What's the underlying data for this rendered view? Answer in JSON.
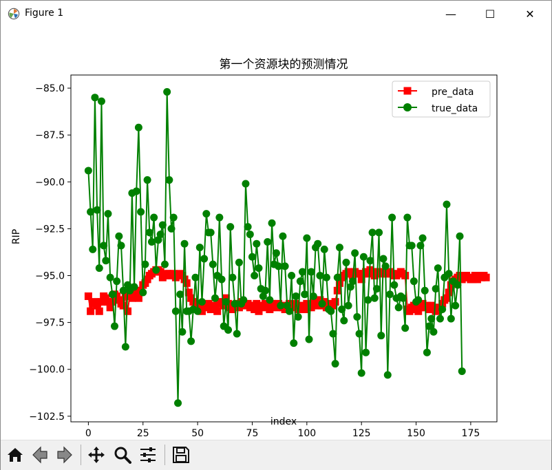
{
  "window": {
    "title": "Figure 1",
    "minimize_glyph": "—",
    "maximize_glyph": "☐",
    "close_glyph": "✕"
  },
  "toolbar": {
    "icons": [
      "home-icon",
      "back-icon",
      "forward-icon",
      "pan-icon",
      "zoom-icon",
      "configure-subplots-icon",
      "save-icon"
    ]
  },
  "colors": {
    "pre": "#ff0000",
    "true": "#008000"
  },
  "chart_data": {
    "type": "line",
    "title": "第一个资源块的预测情况",
    "xlabel": "index",
    "ylabel": "RIP",
    "xlim": [
      -8,
      187
    ],
    "ylim": [
      -102.8,
      -84.3
    ],
    "xticks": [
      0,
      25,
      50,
      75,
      100,
      125,
      150,
      175
    ],
    "xtick_labels": [
      "0",
      "25",
      "50",
      "75",
      "100",
      "125",
      "150",
      "175"
    ],
    "yticks": [
      -85.0,
      -87.5,
      -90.0,
      -92.5,
      -95.0,
      -97.5,
      -100.0,
      -102.5
    ],
    "ytick_labels": [
      "−85.0",
      "−87.5",
      "−90.0",
      "−92.5",
      "−95.0",
      "−97.5",
      "−100.0",
      "−102.5"
    ],
    "legend_position": "top-right",
    "series": [
      {
        "name": "pre_data",
        "marker": "square",
        "color": "#ff0000",
        "values": [
          -96.1,
          -96.9,
          -96.5,
          -96.4,
          -96.6,
          -96.9,
          -96.4,
          -96.1,
          -96.2,
          -96.4,
          -96.7,
          -96.4,
          -96.0,
          -96.1,
          -96.3,
          -96.5,
          -96.6,
          -96.1,
          -96.9,
          -96.0,
          -96.2,
          -95.9,
          -96.0,
          -96.2,
          -95.8,
          -95.5,
          -95.4,
          -95.2,
          -95.0,
          -94.9,
          -94.8,
          -94.7,
          -94.7,
          -94.8,
          -95.1,
          -95.0,
          -94.9,
          -94.9,
          -95.0,
          -94.9,
          -95.1,
          -95.0,
          -94.9,
          -95.0,
          -95.2,
          -95.4,
          -95.9,
          -96.2,
          -96.4,
          -96.5,
          -96.6,
          -96.8,
          -96.9,
          -96.7,
          -96.6,
          -96.5,
          -96.8,
          -96.6,
          -96.7,
          -96.9,
          -96.5,
          -96.4,
          -96.6,
          -96.2,
          -96.5,
          -96.7,
          -96.8,
          -96.6,
          -96.5,
          -96.7,
          -96.4,
          -96.5,
          -96.6,
          -96.5,
          -96.7,
          -96.6,
          -96.8,
          -96.5,
          -96.9,
          -96.6,
          -96.7,
          -96.5,
          -96.6,
          -96.8,
          -96.5,
          -96.6,
          -96.7,
          -96.5,
          -96.6,
          -96.7,
          -96.8,
          -96.6,
          -96.5,
          -96.7,
          -96.6,
          -96.5,
          -96.8,
          -96.7,
          -96.6,
          -96.8,
          -96.5,
          -96.6,
          -96.7,
          -96.4,
          -96.6,
          -96.5,
          -96.3,
          -96.6,
          -96.4,
          -96.7,
          -96.5,
          -96.6,
          -96.6,
          -96.4,
          -95.8,
          -95.4,
          -95.1,
          -95.0,
          -94.9,
          -94.8,
          -94.9,
          -95.0,
          -94.8,
          -94.9,
          -94.9,
          -95.2,
          -94.9,
          -94.8,
          -94.9,
          -94.7,
          -94.8,
          -95.0,
          -94.9,
          -94.8,
          -94.9,
          -94.8,
          -94.9,
          -94.9,
          -94.8,
          -94.9,
          -95.0,
          -95.0,
          -94.9,
          -94.8,
          -94.9,
          -95.0,
          -96.8,
          -96.9,
          -96.7,
          -96.6,
          -96.8,
          -96.9,
          -96.7,
          -96.5,
          -96.7,
          -96.6,
          -96.8,
          -96.6,
          -96.7,
          -96.9,
          -96.8,
          -96.7,
          -96.5,
          -96.3,
          -96.2,
          -95.9,
          -95.5,
          -95.3,
          -95.2,
          -95.1,
          -95.0,
          -95.2,
          -95.1,
          -95.0,
          -95.1,
          -95.2,
          -95.2,
          -95.0,
          -95.2,
          -95.0,
          -95.1,
          -95.0,
          -95.1
        ]
      },
      {
        "name": "true_data",
        "marker": "circle",
        "color": "#008000",
        "values": [
          -89.4,
          -91.6,
          -93.6,
          -85.5,
          -91.5,
          -94.6,
          -85.7,
          -93.4,
          -94.2,
          -91.7,
          -95.1,
          -96.0,
          -97.7,
          -95.3,
          -92.9,
          -93.4,
          -95.8,
          -98.8,
          -95.5,
          -95.8,
          -90.6,
          -95.6,
          -90.5,
          -87.1,
          -91.6,
          -95.9,
          -94.4,
          -89.9,
          -92.7,
          -93.2,
          -91.9,
          -94.7,
          -93.1,
          -92.8,
          -92.3,
          -94.4,
          -85.2,
          -89.9,
          -92.5,
          -91.9,
          -96.9,
          -101.8,
          -96.0,
          -98.0,
          -93.3,
          -96.9,
          -96.9,
          -98.5,
          -96.8,
          -95.1,
          -96.9,
          -93.5,
          -96.4,
          -94.1,
          -91.7,
          -92.7,
          -92.7,
          -94.4,
          -96.2,
          -95.0,
          -91.9,
          -95.2,
          -97.7,
          -96.4,
          -97.9,
          -92.4,
          -95.1,
          -96.5,
          -98.1,
          -94.3,
          -96.5,
          -96.3,
          -90.1,
          -92.4,
          -92.8,
          -94.0,
          -95.0,
          -93.3,
          -94.6,
          -95.7,
          -96.1,
          -95.8,
          -93.2,
          -96.3,
          -92.2,
          -94.4,
          -93.8,
          -94.5,
          -96.6,
          -92.9,
          -94.5,
          -96.6,
          -96.9,
          -95.0,
          -98.6,
          -96.1,
          -97.2,
          -95.3,
          -94.8,
          -96.0,
          -93.0,
          -98.4,
          -94.8,
          -96.1,
          -93.5,
          -93.3,
          -95.0,
          -96.5,
          -93.6,
          -95.1,
          -96.8,
          -96.9,
          -98.1,
          -99.7,
          -95.1,
          -93.5,
          -96.8,
          -97.4,
          -94.3,
          -96.6,
          -95.6,
          -95.3,
          -93.8,
          -97.2,
          -98.1,
          -100.2,
          -94.0,
          -99.1,
          -96.3,
          -94.2,
          -92.7,
          -96.2,
          -95.7,
          -92.7,
          -98.2,
          -94.1,
          -94.5,
          -100.3,
          -96.0,
          -91.9,
          -95.5,
          -96.2,
          -96.7,
          -96.1,
          -96.2,
          -97.8,
          -91.9,
          -93.4,
          -93.4,
          -95.3,
          -96.4,
          -96.3,
          -93.4,
          -93.0,
          -95.8,
          -99.1,
          -97.7,
          -97.3,
          -98.0,
          -95.7,
          -94.6,
          -97.3,
          -96.8,
          -95.1,
          -91.2,
          -94.9,
          -97.3,
          -95.3,
          -96.6,
          -95.5,
          -92.9,
          -100.1
        ]
      }
    ]
  }
}
